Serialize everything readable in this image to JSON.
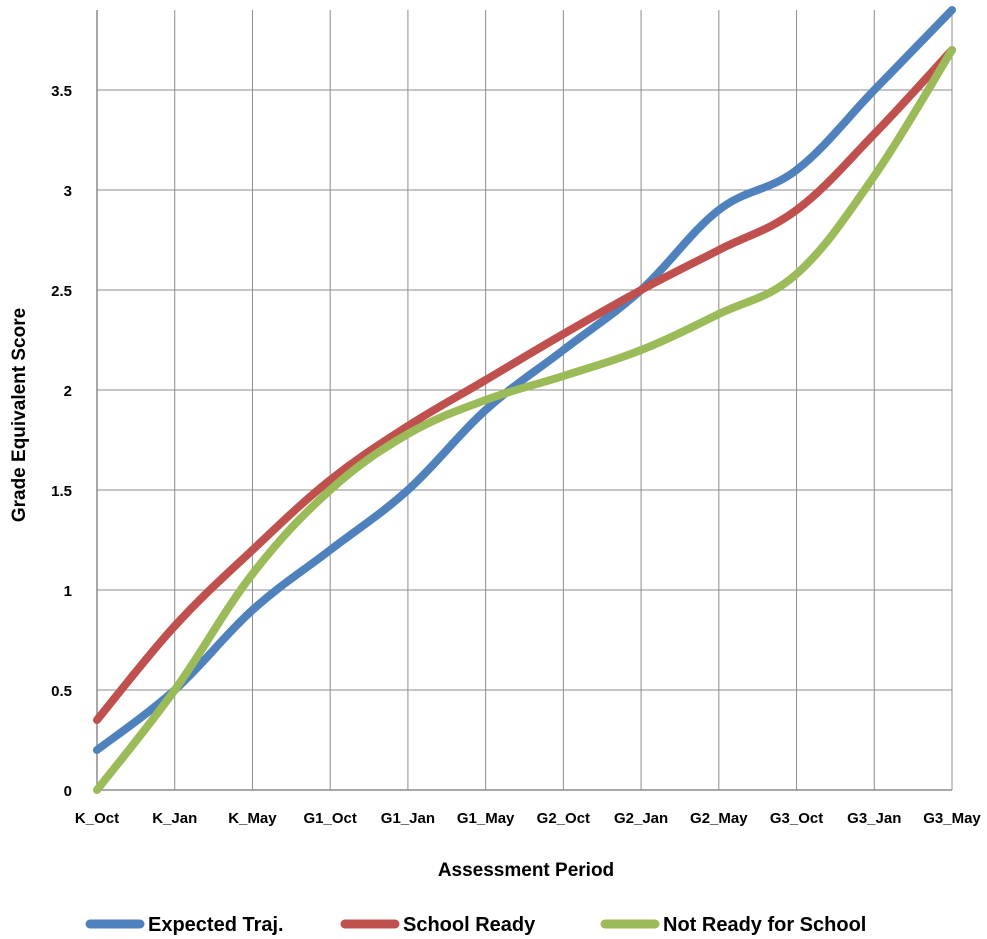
{
  "chart_data": {
    "type": "line",
    "title": "",
    "xlabel": "Assessment Period",
    "ylabel": "Grade Equivalent Score",
    "categories": [
      "K_Oct",
      "K_Jan",
      "K_May",
      "G1_Oct",
      "G1_Jan",
      "G1_May",
      "G2_Oct",
      "G2_Jan",
      "G2_May",
      "G3_Oct",
      "G3_Jan",
      "G3_May"
    ],
    "ylim": [
      0,
      3.9
    ],
    "yticks": [
      "0",
      "0.5",
      "1",
      "1.5",
      "2",
      "2.5",
      "3",
      "3.5"
    ],
    "yticks_values": [
      0,
      0.5,
      1,
      1.5,
      2,
      2.5,
      3,
      3.5
    ],
    "grid": "on",
    "legend_placement": "bottom",
    "series": [
      {
        "name": "Expected Traj.",
        "color": "#4f81bd",
        "values": [
          0.2,
          0.5,
          0.9,
          1.2,
          1.5,
          1.9,
          2.2,
          2.5,
          2.9,
          3.1,
          3.5,
          3.9
        ]
      },
      {
        "name": "School Ready",
        "color": "#c0504d",
        "values": [
          0.35,
          0.82,
          1.2,
          1.55,
          1.82,
          2.05,
          2.28,
          2.5,
          2.7,
          2.9,
          3.28,
          3.7
        ]
      },
      {
        "name": "Not Ready for School",
        "color": "#9bbb59",
        "values": [
          0.0,
          0.5,
          1.08,
          1.5,
          1.78,
          1.95,
          2.07,
          2.2,
          2.38,
          2.58,
          3.07,
          3.7
        ]
      }
    ]
  }
}
